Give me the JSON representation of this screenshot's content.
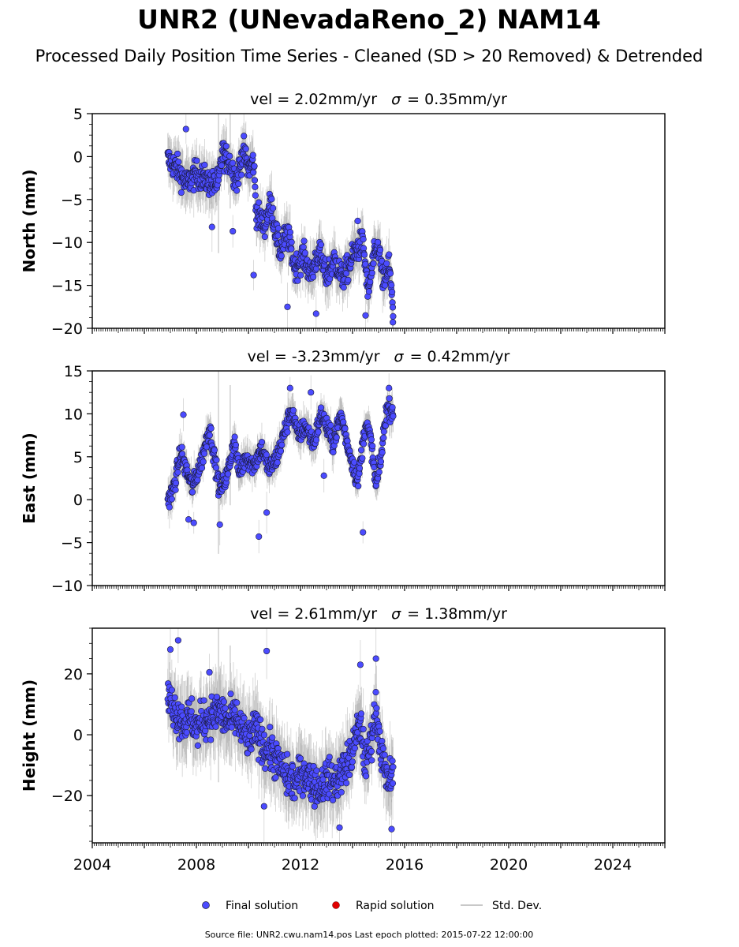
{
  "title": "UNR2 (UNevadaReno_2) NAM14",
  "subtitle": "Processed Daily Position Time Series - Cleaned (SD > 20 Removed) & Detrended",
  "legend": {
    "final": "Final solution",
    "rapid": "Rapid solution",
    "std": "Std. Dev."
  },
  "footer": "Source file: UNR2.cwu.nam14.pos  Last epoch plotted: 2015-07-22 12:00:00",
  "colors": {
    "final": "#4b4bff",
    "rapid": "#e00000",
    "std": "#c8c8c8",
    "edge": "#1a1a3a"
  },
  "chart_data": {
    "type": "scatter",
    "x_axis": {
      "range": [
        2004,
        2026
      ],
      "ticks": [
        2004,
        2008,
        2012,
        2016,
        2020,
        2024
      ],
      "unit": "year"
    },
    "panels": [
      {
        "name": "North",
        "ylabel": "North (mm)",
        "title_vel": "vel = 2.02mm/yr",
        "title_sigma": "= 0.35mm/yr",
        "ylim": [
          -20,
          5
        ],
        "yticks": [
          5,
          0,
          -5,
          -10,
          -15,
          -20
        ],
        "ytick_labels": [
          "5",
          "0",
          "−5",
          "−10",
          "−15",
          "−20"
        ],
        "trend": [
          [
            2006.9,
            -0.3
          ],
          [
            2007.3,
            -1.5
          ],
          [
            2007.6,
            -3.2
          ],
          [
            2008.0,
            -2.0
          ],
          [
            2008.6,
            -3.2
          ],
          [
            2008.85,
            -3.0
          ],
          [
            2009.0,
            0.5
          ],
          [
            2009.3,
            -0.8
          ],
          [
            2009.55,
            -2.8
          ],
          [
            2009.8,
            0.8
          ],
          [
            2010.0,
            -1.5
          ],
          [
            2010.2,
            -0.5
          ],
          [
            2010.3,
            -6.5
          ],
          [
            2010.6,
            -8.0
          ],
          [
            2010.85,
            -5.5
          ],
          [
            2011.2,
            -11.0
          ],
          [
            2011.5,
            -9.0
          ],
          [
            2011.8,
            -13.0
          ],
          [
            2012.1,
            -11.5
          ],
          [
            2012.4,
            -13.8
          ],
          [
            2012.7,
            -11.0
          ],
          [
            2013.0,
            -14.0
          ],
          [
            2013.3,
            -12.0
          ],
          [
            2013.6,
            -14.2
          ],
          [
            2013.9,
            -12.5
          ],
          [
            2014.1,
            -11.0
          ],
          [
            2014.4,
            -10.0
          ],
          [
            2014.6,
            -16.0
          ],
          [
            2014.8,
            -12.0
          ],
          [
            2015.0,
            -10.5
          ],
          [
            2015.2,
            -15.0
          ],
          [
            2015.4,
            -12.5
          ],
          [
            2015.56,
            -18.0
          ]
        ],
        "spread": 1.2,
        "outliers": [
          [
            2007.6,
            3.2
          ],
          [
            2008.6,
            -8.2
          ],
          [
            2009.4,
            -8.7
          ],
          [
            2010.2,
            -13.8
          ],
          [
            2011.5,
            -17.5
          ],
          [
            2012.6,
            -18.3
          ],
          [
            2014.2,
            -7.5
          ],
          [
            2014.5,
            -18.5
          ],
          [
            2015.55,
            -19.3
          ]
        ]
      },
      {
        "name": "East",
        "ylabel": "East (mm)",
        "title_vel": "vel = -3.23mm/yr",
        "title_sigma": "= 0.42mm/yr",
        "ylim": [
          -10,
          15
        ],
        "yticks": [
          15,
          10,
          5,
          0,
          -5,
          -10
        ],
        "ytick_labels": [
          "15",
          "10",
          "5",
          "0",
          "−5",
          "−10"
        ],
        "trend": [
          [
            2006.9,
            0.0
          ],
          [
            2007.1,
            1.0
          ],
          [
            2007.4,
            5.5
          ],
          [
            2007.6,
            3.5
          ],
          [
            2007.85,
            1.5
          ],
          [
            2008.2,
            4.5
          ],
          [
            2008.5,
            8.5
          ],
          [
            2008.9,
            1.0
          ],
          [
            2009.2,
            3.0
          ],
          [
            2009.45,
            7.0
          ],
          [
            2009.65,
            3.0
          ],
          [
            2009.9,
            5.0
          ],
          [
            2010.2,
            4.0
          ],
          [
            2010.5,
            6.0
          ],
          [
            2010.8,
            3.5
          ],
          [
            2011.1,
            5.0
          ],
          [
            2011.4,
            8.0
          ],
          [
            2011.65,
            10.5
          ],
          [
            2011.9,
            7.5
          ],
          [
            2012.2,
            8.5
          ],
          [
            2012.5,
            6.5
          ],
          [
            2012.8,
            10.0
          ],
          [
            2013.0,
            8.5
          ],
          [
            2013.25,
            6.5
          ],
          [
            2013.55,
            10.0
          ],
          [
            2013.8,
            6.5
          ],
          [
            2014.2,
            2.0
          ],
          [
            2014.5,
            9.0
          ],
          [
            2014.7,
            7.0
          ],
          [
            2014.9,
            1.5
          ],
          [
            2015.1,
            5.0
          ],
          [
            2015.3,
            10.5
          ],
          [
            2015.56,
            10.5
          ]
        ],
        "spread": 0.9,
        "outliers": [
          [
            2007.5,
            9.9
          ],
          [
            2007.7,
            -2.3
          ],
          [
            2007.9,
            -2.7
          ],
          [
            2008.9,
            -2.9
          ],
          [
            2010.4,
            -4.3
          ],
          [
            2010.7,
            -1.5
          ],
          [
            2011.6,
            13.0
          ],
          [
            2012.4,
            12.5
          ],
          [
            2012.9,
            2.8
          ],
          [
            2014.4,
            -3.8
          ],
          [
            2015.4,
            13.0
          ]
        ]
      },
      {
        "name": "Height",
        "ylabel": "Height (mm)",
        "title_vel": "vel = 2.61mm/yr",
        "title_sigma": "= 1.38mm/yr",
        "ylim": [
          -35.5,
          35
        ],
        "yticks": [
          20,
          0,
          -20
        ],
        "ytick_labels": [
          "20",
          "0",
          "−20"
        ],
        "trend": [
          [
            2006.9,
            12.0
          ],
          [
            2007.2,
            8.0
          ],
          [
            2007.5,
            4.0
          ],
          [
            2007.8,
            6.0
          ],
          [
            2008.0,
            2.0
          ],
          [
            2008.3,
            5.0
          ],
          [
            2008.6,
            6.0
          ],
          [
            2008.9,
            8.0
          ],
          [
            2009.2,
            4.0
          ],
          [
            2009.5,
            6.0
          ],
          [
            2009.7,
            2.0
          ],
          [
            2010.0,
            -2.0
          ],
          [
            2010.3,
            2.0
          ],
          [
            2010.6,
            -4.0
          ],
          [
            2010.9,
            -6.0
          ],
          [
            2011.2,
            -10.0
          ],
          [
            2011.5,
            -14.0
          ],
          [
            2011.8,
            -16.0
          ],
          [
            2012.1,
            -12.0
          ],
          [
            2012.4,
            -15.0
          ],
          [
            2012.7,
            -18.0
          ],
          [
            2013.0,
            -14.0
          ],
          [
            2013.3,
            -16.0
          ],
          [
            2013.6,
            -12.0
          ],
          [
            2013.9,
            -8.0
          ],
          [
            2014.1,
            -2.0
          ],
          [
            2014.3,
            4.0
          ],
          [
            2014.5,
            -10.0
          ],
          [
            2014.7,
            -2.0
          ],
          [
            2014.9,
            8.0
          ],
          [
            2015.1,
            -5.0
          ],
          [
            2015.3,
            -15.0
          ],
          [
            2015.56,
            -14.0
          ]
        ],
        "spread": 5.0,
        "outliers": [
          [
            2007.0,
            28.0
          ],
          [
            2007.3,
            31.0
          ],
          [
            2008.5,
            20.5
          ],
          [
            2010.7,
            27.5
          ],
          [
            2010.6,
            -23.5
          ],
          [
            2013.5,
            -30.5
          ],
          [
            2014.3,
            23.0
          ],
          [
            2014.9,
            25.0
          ],
          [
            2015.5,
            -31.0
          ]
        ]
      }
    ]
  }
}
